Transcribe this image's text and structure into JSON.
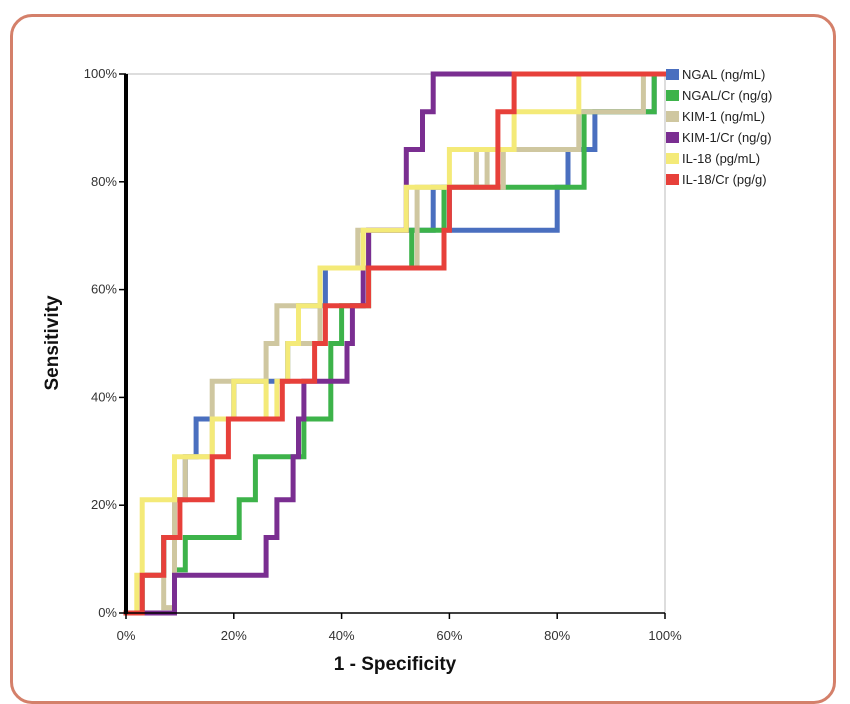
{
  "chart_data": {
    "type": "line",
    "xlabel": "1 - Specificity",
    "ylabel": "Sensitivity",
    "xlim": [
      0,
      100
    ],
    "ylim": [
      0,
      100
    ],
    "x_ticks": [
      "0%",
      "20%",
      "40%",
      "60%",
      "80%",
      "100%"
    ],
    "y_ticks": [
      "0%",
      "20%",
      "40%",
      "60%",
      "80%",
      "100%"
    ],
    "grid": false,
    "legend_position": "top-right, outside plot",
    "series": [
      {
        "name": "NGAL (ng/mL)",
        "color": "#4a6fbf",
        "points": [
          [
            0,
            0
          ],
          [
            3,
            0
          ],
          [
            3,
            7
          ],
          [
            7,
            7
          ],
          [
            7,
            14
          ],
          [
            9,
            14
          ],
          [
            9,
            21
          ],
          [
            11,
            21
          ],
          [
            11,
            29
          ],
          [
            13,
            29
          ],
          [
            13,
            36
          ],
          [
            20,
            36
          ],
          [
            20,
            43
          ],
          [
            30,
            43
          ],
          [
            30,
            50
          ],
          [
            32,
            50
          ],
          [
            32,
            57
          ],
          [
            37,
            57
          ],
          [
            37,
            64
          ],
          [
            45,
            64
          ],
          [
            45,
            71
          ],
          [
            57,
            71
          ],
          [
            57,
            79
          ],
          [
            60,
            79
          ],
          [
            60,
            71
          ],
          [
            80,
            71
          ],
          [
            80,
            79
          ],
          [
            82,
            79
          ],
          [
            82,
            86
          ],
          [
            87,
            86
          ],
          [
            87,
            93
          ],
          [
            98,
            93
          ],
          [
            98,
            100
          ],
          [
            100,
            100
          ]
        ]
      },
      {
        "name": "NGAL/Cr (ng/g)",
        "color": "#3db34a",
        "points": [
          [
            0,
            0
          ],
          [
            3,
            0
          ],
          [
            3,
            7
          ],
          [
            7,
            7
          ],
          [
            7,
            14
          ],
          [
            9,
            14
          ],
          [
            9,
            8
          ],
          [
            11,
            8
          ],
          [
            11,
            14
          ],
          [
            21,
            14
          ],
          [
            21,
            21
          ],
          [
            24,
            21
          ],
          [
            24,
            29
          ],
          [
            33,
            29
          ],
          [
            33,
            36
          ],
          [
            38,
            36
          ],
          [
            38,
            50
          ],
          [
            40,
            50
          ],
          [
            40,
            57
          ],
          [
            45,
            57
          ],
          [
            45,
            64
          ],
          [
            53,
            64
          ],
          [
            53,
            71
          ],
          [
            59,
            71
          ],
          [
            59,
            79
          ],
          [
            85,
            79
          ],
          [
            85,
            93
          ],
          [
            98,
            93
          ],
          [
            98,
            100
          ],
          [
            100,
            100
          ]
        ]
      },
      {
        "name": "KIM-1 (ng/mL)",
        "color": "#cfc7a0",
        "points": [
          [
            0,
            0
          ],
          [
            3,
            0
          ],
          [
            3,
            7
          ],
          [
            7,
            7
          ],
          [
            7,
            1
          ],
          [
            9,
            1
          ],
          [
            9,
            21
          ],
          [
            11,
            21
          ],
          [
            11,
            29
          ],
          [
            16,
            29
          ],
          [
            16,
            43
          ],
          [
            26,
            43
          ],
          [
            26,
            50
          ],
          [
            28,
            50
          ],
          [
            28,
            57
          ],
          [
            32,
            57
          ],
          [
            32,
            50
          ],
          [
            36,
            50
          ],
          [
            36,
            64
          ],
          [
            43,
            64
          ],
          [
            43,
            71
          ],
          [
            45,
            71
          ],
          [
            45,
            64
          ],
          [
            54,
            64
          ],
          [
            54,
            79
          ],
          [
            65,
            79
          ],
          [
            65,
            86
          ],
          [
            67,
            86
          ],
          [
            67,
            79
          ],
          [
            70,
            79
          ],
          [
            70,
            86
          ],
          [
            84,
            86
          ],
          [
            84,
            93
          ],
          [
            96,
            93
          ],
          [
            96,
            100
          ],
          [
            100,
            100
          ]
        ]
      },
      {
        "name": "KIM-1/Cr (ng/g)",
        "color": "#7a2e91",
        "points": [
          [
            0,
            0
          ],
          [
            9,
            0
          ],
          [
            9,
            7
          ],
          [
            26,
            7
          ],
          [
            26,
            14
          ],
          [
            28,
            14
          ],
          [
            28,
            21
          ],
          [
            31,
            21
          ],
          [
            31,
            29
          ],
          [
            32,
            29
          ],
          [
            32,
            36
          ],
          [
            33,
            36
          ],
          [
            33,
            43
          ],
          [
            41,
            43
          ],
          [
            41,
            50
          ],
          [
            42,
            50
          ],
          [
            42,
            57
          ],
          [
            44,
            57
          ],
          [
            44,
            64
          ],
          [
            45,
            64
          ],
          [
            45,
            71
          ],
          [
            52,
            71
          ],
          [
            52,
            86
          ],
          [
            55,
            86
          ],
          [
            55,
            93
          ],
          [
            57,
            93
          ],
          [
            57,
            100
          ],
          [
            100,
            100
          ]
        ]
      },
      {
        "name": "IL-18 (pg/mL)",
        "color": "#f4ea78",
        "points": [
          [
            0,
            0
          ],
          [
            2,
            0
          ],
          [
            2,
            7
          ],
          [
            3,
            7
          ],
          [
            3,
            21
          ],
          [
            9,
            21
          ],
          [
            9,
            29
          ],
          [
            16,
            29
          ],
          [
            16,
            36
          ],
          [
            20,
            36
          ],
          [
            20,
            43
          ],
          [
            26,
            43
          ],
          [
            26,
            36
          ],
          [
            28,
            36
          ],
          [
            28,
            43
          ],
          [
            30,
            43
          ],
          [
            30,
            50
          ],
          [
            32,
            50
          ],
          [
            32,
            57
          ],
          [
            36,
            57
          ],
          [
            36,
            64
          ],
          [
            44,
            64
          ],
          [
            44,
            71
          ],
          [
            52,
            71
          ],
          [
            52,
            79
          ],
          [
            60,
            79
          ],
          [
            60,
            86
          ],
          [
            72,
            86
          ],
          [
            72,
            93
          ],
          [
            84,
            93
          ],
          [
            84,
            100
          ],
          [
            100,
            100
          ]
        ]
      },
      {
        "name": "IL-18/Cr (pg/g)",
        "color": "#e7403a",
        "points": [
          [
            0,
            0
          ],
          [
            3,
            0
          ],
          [
            3,
            7
          ],
          [
            7,
            7
          ],
          [
            7,
            14
          ],
          [
            10,
            14
          ],
          [
            10,
            21
          ],
          [
            16,
            21
          ],
          [
            16,
            29
          ],
          [
            19,
            29
          ],
          [
            19,
            36
          ],
          [
            29,
            36
          ],
          [
            29,
            43
          ],
          [
            35,
            43
          ],
          [
            35,
            50
          ],
          [
            37,
            50
          ],
          [
            37,
            57
          ],
          [
            45,
            57
          ],
          [
            45,
            64
          ],
          [
            59,
            64
          ],
          [
            59,
            71
          ],
          [
            60,
            71
          ],
          [
            60,
            79
          ],
          [
            69,
            79
          ],
          [
            69,
            93
          ],
          [
            72,
            93
          ],
          [
            72,
            100
          ],
          [
            100,
            100
          ]
        ]
      }
    ]
  }
}
